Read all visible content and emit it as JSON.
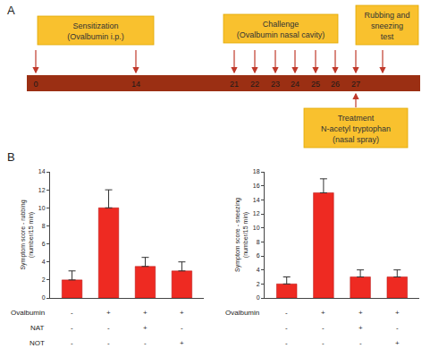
{
  "panel_a": {
    "label": "A",
    "days": [
      0,
      14,
      21,
      22,
      23,
      24,
      25,
      26,
      27
    ],
    "sensitization": {
      "lines": [
        "Sensitization",
        "(Ovalbumin i.p.)"
      ],
      "days": [
        0,
        14
      ]
    },
    "challenge": {
      "lines": [
        "Challenge",
        "(Ovalbumin nasal cavity)"
      ],
      "days": [
        21,
        22,
        23,
        24,
        25,
        26,
        27
      ]
    },
    "test": {
      "lines": [
        "Rubbing and",
        "sneezing",
        "test"
      ]
    },
    "treatment": {
      "lines": [
        "Treatment",
        "N-acetyl tryptophan",
        "(nasal spray)"
      ],
      "day": 27
    }
  },
  "panel_b_label": "B",
  "chart_data": [
    {
      "type": "bar",
      "y_label": [
        "Symptom score - rubbing",
        "(number/15 min)"
      ],
      "categories": [
        null,
        null,
        null,
        null
      ],
      "values": [
        2,
        10,
        3.5,
        3
      ],
      "errors": [
        1,
        2,
        1,
        1
      ],
      "color": "#ee2a22",
      "ylim": [
        0,
        14
      ],
      "yticks": [
        0,
        2,
        4,
        6,
        8,
        10,
        12,
        14
      ],
      "grid": false,
      "conditions": [
        {
          "label": "Ovalbumin",
          "signs": [
            "-",
            "+",
            "+",
            "+"
          ]
        },
        {
          "label": "NAT",
          "signs": [
            "-",
            "-",
            "+",
            "-"
          ]
        },
        {
          "label": "NOT",
          "signs": [
            "-",
            "-",
            "-",
            "+"
          ]
        }
      ]
    },
    {
      "type": "bar",
      "y_label": [
        "Symptom score - sneezing",
        "(number/15 min)"
      ],
      "categories": [
        null,
        null,
        null,
        null
      ],
      "values": [
        2,
        15,
        3,
        3
      ],
      "errors": [
        1,
        2,
        1,
        1
      ],
      "color": "#ee2a22",
      "ylim": [
        0,
        18
      ],
      "yticks": [
        0,
        2,
        4,
        6,
        8,
        10,
        12,
        14,
        16,
        18
      ],
      "grid": false,
      "conditions": [
        {
          "label": "Ovalbumin",
          "signs": [
            "-",
            "+",
            "+",
            "+"
          ]
        },
        {
          "label": null,
          "signs": [
            "-",
            "-",
            "+",
            "-"
          ]
        },
        {
          "label": null,
          "signs": [
            "-",
            "-",
            "-",
            "+"
          ]
        }
      ]
    }
  ]
}
